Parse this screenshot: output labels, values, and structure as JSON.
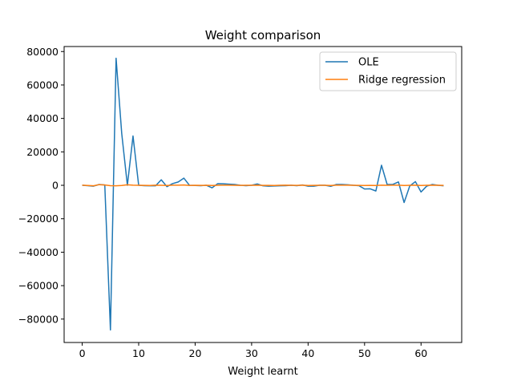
{
  "chart_data": {
    "type": "line",
    "title": "Weight comparison",
    "xlabel": "Weight learnt",
    "ylabel": "",
    "xlim": [
      -3.2,
      67.2
    ],
    "ylim": [
      -94000,
      83000
    ],
    "xticks": [
      0,
      10,
      20,
      30,
      40,
      50,
      60
    ],
    "yticks": [
      -80000,
      -60000,
      -40000,
      -20000,
      0,
      20000,
      40000,
      60000,
      80000
    ],
    "grid": false,
    "legend_position": "top-right",
    "x": [
      0,
      1,
      2,
      3,
      4,
      5,
      6,
      7,
      8,
      9,
      10,
      11,
      12,
      13,
      14,
      15,
      16,
      17,
      18,
      19,
      20,
      21,
      22,
      23,
      24,
      25,
      26,
      27,
      28,
      29,
      30,
      31,
      32,
      33,
      34,
      35,
      36,
      37,
      38,
      39,
      40,
      41,
      42,
      43,
      44,
      45,
      46,
      47,
      48,
      49,
      50,
      51,
      52,
      53,
      54,
      55,
      56,
      57,
      58,
      59,
      60,
      61,
      62,
      63,
      64
    ],
    "series": [
      {
        "name": "OLE",
        "color": "#1f77b4",
        "values": [
          0,
          -200,
          -500,
          500,
          200,
          -86500,
          76000,
          31000,
          0,
          29500,
          0,
          -200,
          -300,
          -300,
          3300,
          -800,
          1000,
          2000,
          4300,
          0,
          -100,
          -200,
          0,
          -1500,
          1000,
          900,
          700,
          500,
          0,
          -200,
          0,
          800,
          -300,
          -500,
          -400,
          -300,
          -200,
          0,
          -200,
          200,
          -500,
          -500,
          0,
          0,
          -600,
          500,
          500,
          300,
          0,
          -200,
          -2200,
          -2100,
          -3400,
          12000,
          500,
          500,
          2000,
          -10300,
          -400,
          2200,
          -4000,
          -500,
          500,
          0,
          -300
        ]
      },
      {
        "name": "Ridge regression",
        "color": "#ff7f0e",
        "values": [
          100,
          -100,
          -300,
          400,
          200,
          -200,
          -300,
          -100,
          300,
          100,
          0,
          -50,
          -100,
          100,
          0,
          -100,
          100,
          50,
          200,
          -100,
          0,
          -50,
          0,
          -100,
          0,
          100,
          50,
          0,
          -50,
          0,
          0,
          100,
          -50,
          -50,
          -100,
          0,
          50,
          0,
          -50,
          100,
          -100,
          -50,
          0,
          0,
          -100,
          50,
          100,
          50,
          0,
          -50,
          -100,
          -50,
          -100,
          100,
          0,
          50,
          100,
          -100,
          0,
          100,
          -100,
          0,
          50,
          0,
          -50
        ]
      }
    ]
  }
}
